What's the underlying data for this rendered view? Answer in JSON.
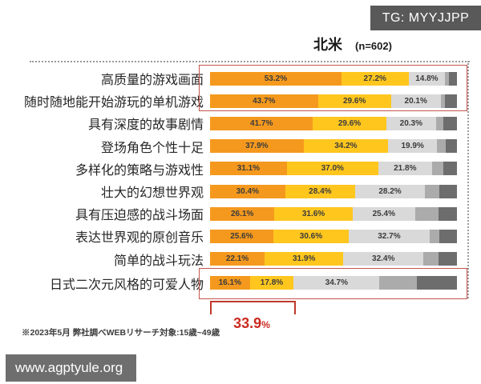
{
  "badge": {
    "label": "TG: MYYJJPP"
  },
  "header": {
    "region": "北米",
    "sample": "(n=602)"
  },
  "chart_data": {
    "type": "bar",
    "variant": "horizontal-stacked",
    "value_unit": "%",
    "title": "北米",
    "sample_label": "(n=602)",
    "axis": {
      "x_range": [
        0,
        100
      ],
      "grid": false,
      "legend": "none"
    },
    "segment_colors": [
      "#F5991E",
      "#FFC61E",
      "#D9D9D9",
      "#ABABAB",
      "#6D6D6D"
    ],
    "segment_names": [
      "bar-segment-orange",
      "bar-segment-yellow",
      "bar-segment-lightgray",
      "bar-segment-midgray",
      "bar-segment-darkgray"
    ],
    "rows": [
      {
        "label": "高质量的游戏画面",
        "values_labeled": [
          53.2,
          27.2,
          14.8
        ],
        "values_unlabeled_est": [
          1.5,
          3.3
        ]
      },
      {
        "label": "随时随地能开始游玩的单机游戏",
        "values_labeled": [
          43.7,
          29.6,
          20.1
        ],
        "values_unlabeled_est": [
          1.8,
          4.8
        ]
      },
      {
        "label": "具有深度的故事剧情",
        "values_labeled": [
          41.7,
          29.6,
          20.3
        ],
        "values_unlabeled_est": [
          3.0,
          5.4
        ]
      },
      {
        "label": "登场角色个性十足",
        "values_labeled": [
          37.9,
          34.2,
          19.9
        ],
        "values_unlabeled_est": [
          3.4,
          4.6
        ]
      },
      {
        "label": "多样化的策略与游戏性",
        "values_labeled": [
          31.1,
          37.0,
          21.8
        ],
        "values_unlabeled_est": [
          4.6,
          5.5
        ]
      },
      {
        "label": "壮大的幻想世界观",
        "values_labeled": [
          30.4,
          28.4,
          28.2
        ],
        "values_unlabeled_est": [
          6.0,
          7.0
        ]
      },
      {
        "label": "具有压迫感的战斗场面",
        "values_labeled": [
          26.1,
          31.6,
          25.4
        ],
        "values_unlabeled_est": [
          9.5,
          7.4
        ]
      },
      {
        "label": "表达世界观的原创音乐",
        "values_labeled": [
          25.6,
          30.6,
          32.7
        ],
        "values_unlabeled_est": [
          3.9,
          7.2
        ]
      },
      {
        "label": "简单的战斗玩法",
        "values_labeled": [
          22.1,
          31.9,
          32.4
        ],
        "values_unlabeled_est": [
          6.1,
          7.5
        ]
      },
      {
        "label": "日式二次元风格的可爱人物",
        "values_labeled": [
          16.1,
          17.8,
          34.7
        ],
        "values_unlabeled_est": [
          15.3,
          16.1
        ]
      }
    ],
    "highlighted_rows": [
      "高质量的游戏画面",
      "随时随地能开始游玩的单机游戏",
      "日式二次元风格的可爱人物"
    ]
  },
  "annotation": {
    "value": "33.9",
    "unit": "%"
  },
  "footnote": {
    "text": "※2023年5月 弊社調べWEBリサーチ対象:15歳~49歳"
  },
  "watermark": {
    "text": "www.agptyule.org"
  }
}
